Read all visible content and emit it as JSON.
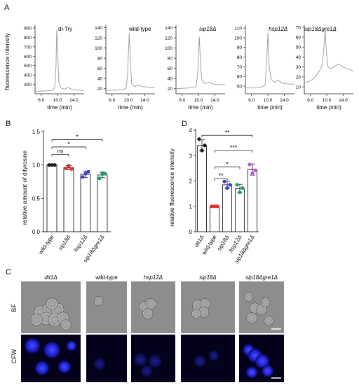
{
  "panel_labels": {
    "a": "A",
    "b": "B",
    "c": "C",
    "d": "D"
  },
  "chart_data": [
    {
      "panel": "A",
      "type": "line",
      "ylabel": "fluorescence intensity",
      "xlabel": "time (min)",
      "x_ticks": [
        "6.0",
        "10.0",
        "14.0"
      ],
      "xlim": [
        4.5,
        16.5
      ],
      "series": [
        {
          "name": "di-Try",
          "italic": false,
          "y_ticks": [
            "900",
            "800",
            "700",
            "600",
            "500",
            "400",
            "300"
          ],
          "ylim": [
            200,
            930
          ],
          "points": [
            [
              4.5,
              225
            ],
            [
              6,
              228
            ],
            [
              7.5,
              232
            ],
            [
              8.8,
              238
            ],
            [
              9.3,
              262
            ],
            [
              9.6,
              480
            ],
            [
              9.8,
              880
            ],
            [
              10.0,
              700
            ],
            [
              10.3,
              330
            ],
            [
              10.8,
              262
            ],
            [
              11.8,
              250
            ],
            [
              12.6,
              268
            ],
            [
              13.4,
              248
            ],
            [
              14.6,
              240
            ],
            [
              16.5,
              236
            ]
          ]
        },
        {
          "name": "wild-type",
          "italic": false,
          "y_ticks": [
            "140",
            "120",
            "100",
            "80",
            "60",
            "40",
            "20"
          ],
          "ylim": [
            10,
            145
          ],
          "points": [
            [
              4.5,
              17
            ],
            [
              6.5,
              17
            ],
            [
              8.5,
              18
            ],
            [
              9.4,
              20
            ],
            [
              9.8,
              46
            ],
            [
              10.2,
              130
            ],
            [
              10.5,
              70
            ],
            [
              10.8,
              30
            ],
            [
              11.5,
              24
            ],
            [
              12.5,
              27
            ],
            [
              13.5,
              24
            ],
            [
              15,
              23
            ],
            [
              16.5,
              23
            ]
          ]
        },
        {
          "name": "sip18Δ",
          "italic": true,
          "y_ticks": [
            "140",
            "120",
            "100",
            "80",
            "60",
            "40",
            "20"
          ],
          "ylim": [
            10,
            145
          ],
          "points": [
            [
              4.5,
              20
            ],
            [
              6.5,
              21
            ],
            [
              8.5,
              22
            ],
            [
              9.4,
              24
            ],
            [
              9.8,
              50
            ],
            [
              10.2,
              122
            ],
            [
              10.5,
              66
            ],
            [
              10.8,
              38
            ],
            [
              11.5,
              30
            ],
            [
              12.5,
              33
            ],
            [
              13.5,
              29
            ],
            [
              15,
              28
            ],
            [
              16.5,
              28
            ]
          ]
        },
        {
          "name": "hsp12Δ",
          "italic": true,
          "y_ticks": [
            "110",
            "100",
            "90",
            "80",
            "70",
            "60",
            "50"
          ],
          "ylim": [
            42,
            113
          ],
          "points": [
            [
              4.5,
              48
            ],
            [
              6.5,
              48
            ],
            [
              8.5,
              49
            ],
            [
              9.3,
              51
            ],
            [
              9.7,
              75
            ],
            [
              10.0,
              105
            ],
            [
              10.3,
              72
            ],
            [
              10.7,
              58
            ],
            [
              11.5,
              54
            ],
            [
              12.5,
              56
            ],
            [
              13.5,
              53
            ],
            [
              15,
              52
            ],
            [
              16.5,
              52
            ]
          ]
        },
        {
          "name": "sip18Δgre1Δ",
          "italic": true,
          "y_ticks": [
            "70",
            "60",
            "50",
            "40",
            "30",
            "20",
            "10"
          ],
          "ylim": [
            3,
            72
          ],
          "points": [
            [
              4.5,
              14
            ],
            [
              6,
              16
            ],
            [
              7.2,
              20
            ],
            [
              8.2,
              26
            ],
            [
              8.9,
              32
            ],
            [
              9.3,
              50
            ],
            [
              9.6,
              68
            ],
            [
              9.9,
              44
            ],
            [
              10.3,
              30
            ],
            [
              11,
              28
            ],
            [
              12,
              31
            ],
            [
              13,
              33
            ],
            [
              14,
              30
            ],
            [
              15,
              28
            ],
            [
              16.5,
              26
            ]
          ]
        }
      ]
    },
    {
      "panel": "B",
      "type": "bar",
      "ylabel": "relative amount of dityrosine",
      "ylim": [
        0,
        1.5
      ],
      "y_ticks": [
        "0.0",
        "0.5",
        "1.0",
        "1.5"
      ],
      "categories": [
        {
          "label": "wild-type",
          "italic": false
        },
        {
          "label": "sip18Δ",
          "italic": true
        },
        {
          "label": "hsp12Δ",
          "italic": true
        },
        {
          "label": "sip18Δgre1Δ",
          "italic": true
        }
      ],
      "values": [
        1.0,
        0.96,
        0.86,
        0.85
      ],
      "errors": [
        0.0,
        0.03,
        0.05,
        0.04
      ],
      "points": [
        [
          1.0,
          1.0,
          1.0
        ],
        [
          0.95,
          0.99,
          0.94
        ],
        [
          0.82,
          0.87,
          0.9
        ],
        [
          0.8,
          0.88,
          0.87
        ]
      ],
      "colors": [
        "#1a1a1a",
        "#e03030",
        "#3c3cd2",
        "#1f9d6b"
      ],
      "significance": [
        {
          "from": 0,
          "to": 1,
          "label": "ns",
          "y": 1.16
        },
        {
          "from": 0,
          "to": 2,
          "label": "*",
          "y": 1.27
        },
        {
          "from": 0,
          "to": 3,
          "label": "*",
          "y": 1.38
        }
      ]
    },
    {
      "panel": "D",
      "type": "bar",
      "ylabel": "relative fluorescence intensity",
      "ylim": [
        0,
        4
      ],
      "y_ticks": [
        "0",
        "1",
        "2",
        "3",
        "4"
      ],
      "categories": [
        {
          "label": "dit1Δ",
          "italic": true
        },
        {
          "label": "wild-type",
          "italic": false
        },
        {
          "label": "sip18Δ",
          "italic": true
        },
        {
          "label": "hsp12Δ",
          "italic": true
        },
        {
          "label": "sip18Δgre1Δ",
          "italic": true
        }
      ],
      "values": [
        3.4,
        1.0,
        1.85,
        1.7,
        2.45
      ],
      "errors": [
        0.22,
        0.0,
        0.14,
        0.17,
        0.22
      ],
      "points": [
        [
          3.65,
          3.2,
          3.4
        ],
        [
          1.0,
          1.0,
          1.0
        ],
        [
          1.98,
          1.72,
          1.85
        ],
        [
          1.85,
          1.55,
          1.72
        ],
        [
          2.65,
          2.3,
          2.42
        ]
      ],
      "colors": [
        "#1a1a1a",
        "#e03030",
        "#3c3cd2",
        "#1f9d6b",
        "#c64fe0"
      ],
      "significance": [
        {
          "from": 0,
          "to": 4,
          "label": "**",
          "y": 3.8
        },
        {
          "from": 1,
          "to": 4,
          "label": "***",
          "y": 3.2
        },
        {
          "from": 1,
          "to": 3,
          "label": "*",
          "y": 2.55
        },
        {
          "from": 1,
          "to": 2,
          "label": "**",
          "y": 2.1
        }
      ]
    }
  ],
  "microscopy": {
    "columns": [
      {
        "label": "dit1Δ",
        "italic": true
      },
      {
        "label": "wild-type",
        "italic": false
      },
      {
        "label": "hsp12Δ",
        "italic": true
      },
      {
        "label": "sip18Δ",
        "italic": true
      },
      {
        "label": "sip18Δgre1Δ",
        "italic": true
      }
    ],
    "rows": [
      "BF",
      "CFW"
    ],
    "colors": {
      "bf_bg": "#8d8d8d",
      "cfw_bg": "#03021a",
      "cfw_cell": "#2a2cff"
    }
  }
}
